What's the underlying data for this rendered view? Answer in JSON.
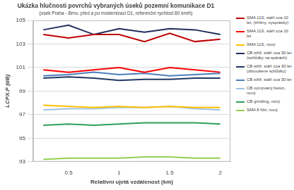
{
  "chart_data": {
    "type": "line",
    "title": "Ukázka hlučnosti povrchů vybraných úseků pozemní komunikace D1",
    "subtitle": "(úsek Praha - Brno, před a po modernizaci D1, referenční rychlost 80 km/h)",
    "x_label": "Relativní ujetá vzdálenost (km)",
    "y_label": "LCPX,P (dB)",
    "x": [
      0.25,
      0.5,
      0.75,
      1,
      1.25,
      1.5,
      1.75,
      2
    ],
    "xlim": [
      0.15,
      2.1
    ],
    "xticks": [
      0.5,
      1,
      1.5,
      2
    ],
    "ylim": [
      93,
      105
    ],
    "yticks": [
      93,
      95,
      97,
      99,
      101,
      103,
      105
    ],
    "grid": true,
    "legend": "right",
    "series": [
      {
        "name": "SMA 11S, stáří cca 10 let, (trhliny, vysprávky)",
        "color": "#c00000",
        "values": [
          103.8,
          103.5,
          103.8,
          103.8,
          103.2,
          103.9,
          103.2,
          103.4
        ]
      },
      {
        "name": "SMA 11S, stáří cca 10 let",
        "color": "#ff0000",
        "values": [
          100.8,
          100.6,
          100.8,
          101.0,
          100.6,
          101.0,
          100.8,
          100.6
        ]
      },
      {
        "name": "SMA 11S, nový",
        "color": "#ffc000",
        "values": [
          97.8,
          97.7,
          97.6,
          97.7,
          97.6,
          97.7,
          97.6,
          97.6
        ]
      },
      {
        "name": "CB střiž, stáří cca 30 let (schůdky na spárách)",
        "color": "#1f2d5a",
        "values": [
          104.2,
          104.6,
          103.8,
          104.3,
          104.0,
          104.3,
          104.2,
          103.8
        ]
      },
      {
        "name": "CB střiž, stáří cca 30 let (zbroušené schůdky)",
        "color": "#203864",
        "values": [
          100.1,
          100.2,
          100.1,
          99.9,
          100.0,
          100.0,
          100.1,
          100.1
        ]
      },
      {
        "name": "CB střiž, stáří cca 30 let",
        "color": "#4a7ebb",
        "values": [
          100.3,
          100.4,
          100.6,
          100.4,
          100.5,
          100.3,
          100.4,
          100.5
        ]
      },
      {
        "name": "CB vymývaný beton, nový",
        "color": "#9dc3e6",
        "values": [
          97.4,
          97.5,
          97.5,
          97.6,
          97.6,
          97.7,
          97.5,
          97.4
        ]
      },
      {
        "name": "CB grinding, nový",
        "color": "#2e9e5b",
        "values": [
          96.1,
          96.2,
          96.1,
          96.2,
          96.3,
          96.3,
          96.3,
          96.2
        ]
      },
      {
        "name": "SMA 8 NH, nový",
        "color": "#92d050",
        "values": [
          93.2,
          93.3,
          93.3,
          93.3,
          93.4,
          93.4,
          93.3,
          93.3
        ]
      }
    ]
  }
}
